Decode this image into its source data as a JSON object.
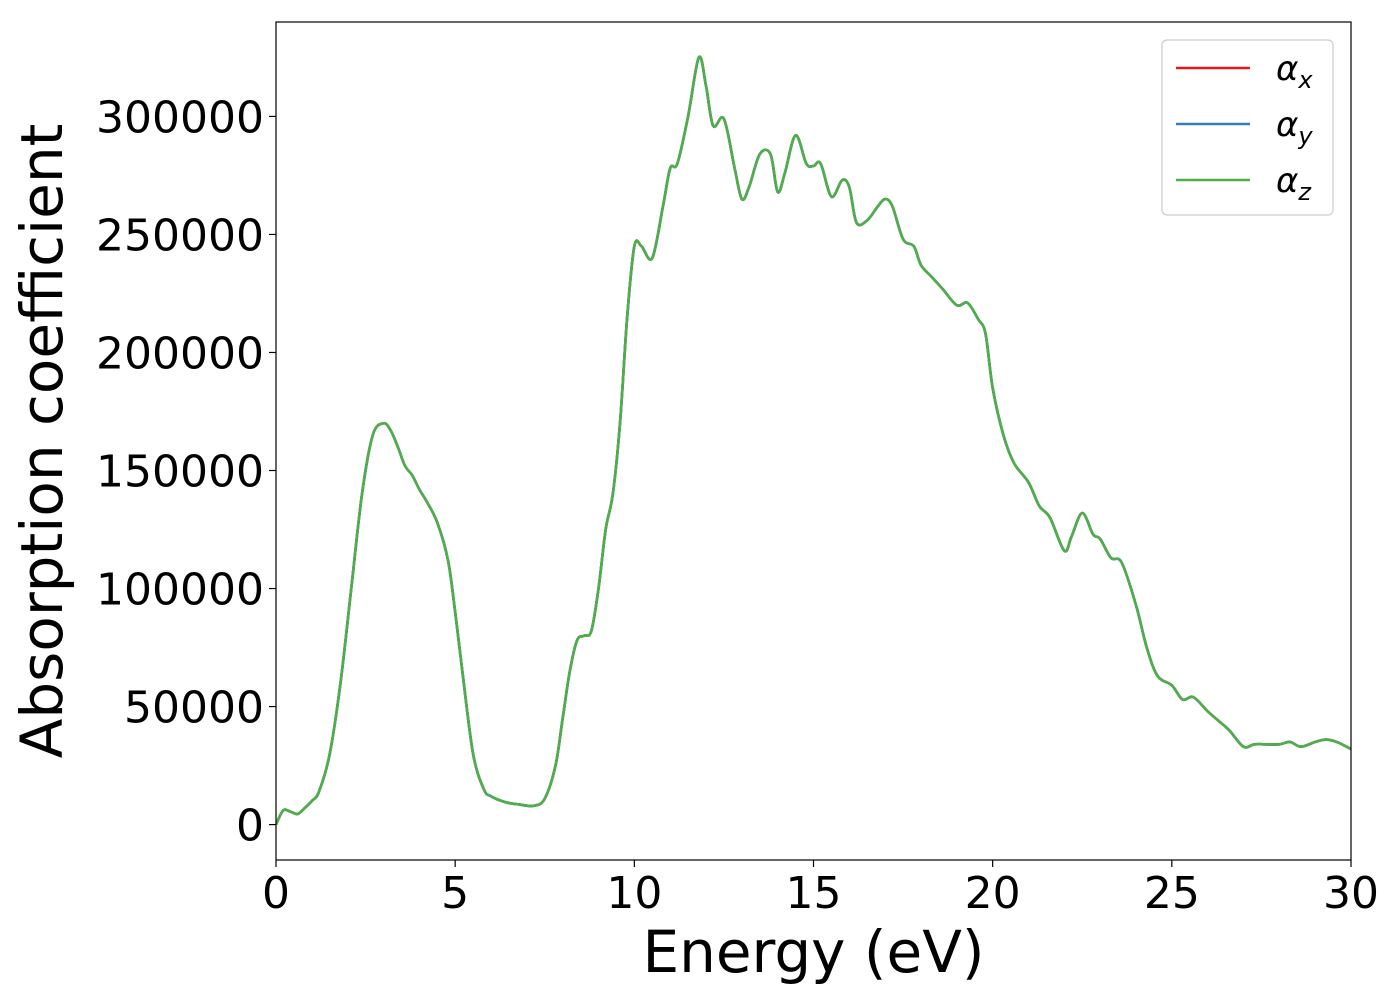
{
  "chart_data": {
    "type": "line",
    "xlabel": "Energy (eV)",
    "ylabel": "Absorption coefficient",
    "xlim": [
      0,
      30
    ],
    "ylim": [
      -15000,
      340000
    ],
    "xticks": [
      0,
      5,
      10,
      15,
      20,
      25,
      30
    ],
    "xtick_labels": [
      "0",
      "5",
      "10",
      "15",
      "20",
      "25",
      "30"
    ],
    "yticks": [
      0,
      50000,
      100000,
      150000,
      200000,
      250000,
      300000
    ],
    "ytick_labels": [
      "0",
      "50000",
      "100000",
      "150000",
      "200000",
      "250000",
      "300000"
    ],
    "grid": false,
    "legend_position": "top-right",
    "x": [
      0,
      0.2,
      0.4,
      0.6,
      0.8,
      1.0,
      1.2,
      1.5,
      1.8,
      2.1,
      2.4,
      2.7,
      3.0,
      3.2,
      3.4,
      3.6,
      3.8,
      4.0,
      4.2,
      4.5,
      4.8,
      5.0,
      5.2,
      5.5,
      5.8,
      6.0,
      6.4,
      6.8,
      7.2,
      7.5,
      7.8,
      8.0,
      8.2,
      8.4,
      8.6,
      8.8,
      9.0,
      9.2,
      9.4,
      9.6,
      9.8,
      10.0,
      10.2,
      10.5,
      10.8,
      11.0,
      11.2,
      11.5,
      11.8,
      12.0,
      12.2,
      12.5,
      12.8,
      13.0,
      13.2,
      13.5,
      13.8,
      14.0,
      14.2,
      14.5,
      14.8,
      15.0,
      15.2,
      15.5,
      15.8,
      16.0,
      16.2,
      16.5,
      16.8,
      17.0,
      17.2,
      17.5,
      17.8,
      18.0,
      18.3,
      18.6,
      19.0,
      19.3,
      19.6,
      19.8,
      20.0,
      20.3,
      20.6,
      21.0,
      21.3,
      21.6,
      22.0,
      22.2,
      22.5,
      22.8,
      23.0,
      23.3,
      23.6,
      24.0,
      24.3,
      24.6,
      25.0,
      25.3,
      25.6,
      26.0,
      26.3,
      26.6,
      27.0,
      27.3,
      27.6,
      28.0,
      28.3,
      28.6,
      29.0,
      29.3,
      29.6,
      30.0
    ],
    "series": [
      {
        "name": "α_x",
        "label_main": "α",
        "label_sub": "x",
        "color": "#e41a1c",
        "y": [
          0,
          6000,
          5500,
          4500,
          7000,
          10000,
          14000,
          30000,
          60000,
          100000,
          140000,
          165000,
          170000,
          167000,
          160000,
          152000,
          148000,
          142000,
          137000,
          128000,
          112000,
          90000,
          65000,
          30000,
          15000,
          12000,
          9500,
          8500,
          8000,
          11000,
          25000,
          45000,
          65000,
          78000,
          80000,
          82000,
          100000,
          125000,
          140000,
          170000,
          215000,
          245000,
          245000,
          240000,
          262000,
          278000,
          280000,
          300000,
          325000,
          313000,
          296000,
          299000,
          278000,
          265000,
          270000,
          284000,
          284000,
          268000,
          276000,
          292000,
          280000,
          279000,
          280000,
          266000,
          273000,
          270000,
          255000,
          256000,
          262000,
          265000,
          262000,
          248000,
          245000,
          237000,
          232000,
          227000,
          220000,
          221000,
          214000,
          208000,
          185000,
          165000,
          153000,
          145000,
          135000,
          130000,
          116000,
          122000,
          132000,
          123000,
          121000,
          113000,
          111000,
          93000,
          75000,
          63000,
          59000,
          53000,
          54000,
          48000,
          44000,
          40000,
          33000,
          34000,
          34000,
          34000,
          35000,
          33000,
          35000,
          36000,
          35000,
          32000
        ]
      },
      {
        "name": "α_y",
        "label_main": "α",
        "label_sub": "y",
        "color": "#377eb8",
        "y": [
          0,
          6000,
          5500,
          4500,
          7000,
          10000,
          14000,
          30000,
          60000,
          100000,
          140000,
          165000,
          170000,
          167000,
          160000,
          152000,
          148000,
          142000,
          137000,
          128000,
          112000,
          90000,
          65000,
          30000,
          15000,
          12000,
          9500,
          8500,
          8000,
          11000,
          25000,
          45000,
          65000,
          78000,
          80000,
          82000,
          100000,
          125000,
          140000,
          170000,
          215000,
          245000,
          245000,
          240000,
          262000,
          278000,
          280000,
          300000,
          325000,
          313000,
          296000,
          299000,
          278000,
          265000,
          270000,
          284000,
          284000,
          268000,
          276000,
          292000,
          280000,
          279000,
          280000,
          266000,
          273000,
          270000,
          255000,
          256000,
          262000,
          265000,
          262000,
          248000,
          245000,
          237000,
          232000,
          227000,
          220000,
          221000,
          214000,
          208000,
          185000,
          165000,
          153000,
          145000,
          135000,
          130000,
          116000,
          122000,
          132000,
          123000,
          121000,
          113000,
          111000,
          93000,
          75000,
          63000,
          59000,
          53000,
          54000,
          48000,
          44000,
          40000,
          33000,
          34000,
          34000,
          34000,
          35000,
          33000,
          35000,
          36000,
          35000,
          32000
        ]
      },
      {
        "name": "α_z",
        "label_main": "α",
        "label_sub": "z",
        "color": "#4daf4a",
        "y": [
          0,
          6000,
          5500,
          4500,
          7000,
          10000,
          14000,
          30000,
          60000,
          100000,
          140000,
          165000,
          170000,
          167000,
          160000,
          152000,
          148000,
          142000,
          137000,
          128000,
          112000,
          90000,
          65000,
          30000,
          15000,
          12000,
          9500,
          8500,
          8000,
          11000,
          25000,
          45000,
          65000,
          78000,
          80000,
          82000,
          100000,
          125000,
          140000,
          170000,
          215000,
          245000,
          245000,
          240000,
          262000,
          278000,
          280000,
          300000,
          325000,
          313000,
          296000,
          299000,
          278000,
          265000,
          270000,
          284000,
          284000,
          268000,
          276000,
          292000,
          280000,
          279000,
          280000,
          266000,
          273000,
          270000,
          255000,
          256000,
          262000,
          265000,
          262000,
          248000,
          245000,
          237000,
          232000,
          227000,
          220000,
          221000,
          214000,
          208000,
          185000,
          165000,
          153000,
          145000,
          135000,
          130000,
          116000,
          122000,
          132000,
          123000,
          121000,
          113000,
          111000,
          93000,
          75000,
          63000,
          59000,
          53000,
          54000,
          48000,
          44000,
          40000,
          33000,
          34000,
          34000,
          34000,
          35000,
          33000,
          35000,
          36000,
          35000,
          32000
        ]
      }
    ]
  }
}
